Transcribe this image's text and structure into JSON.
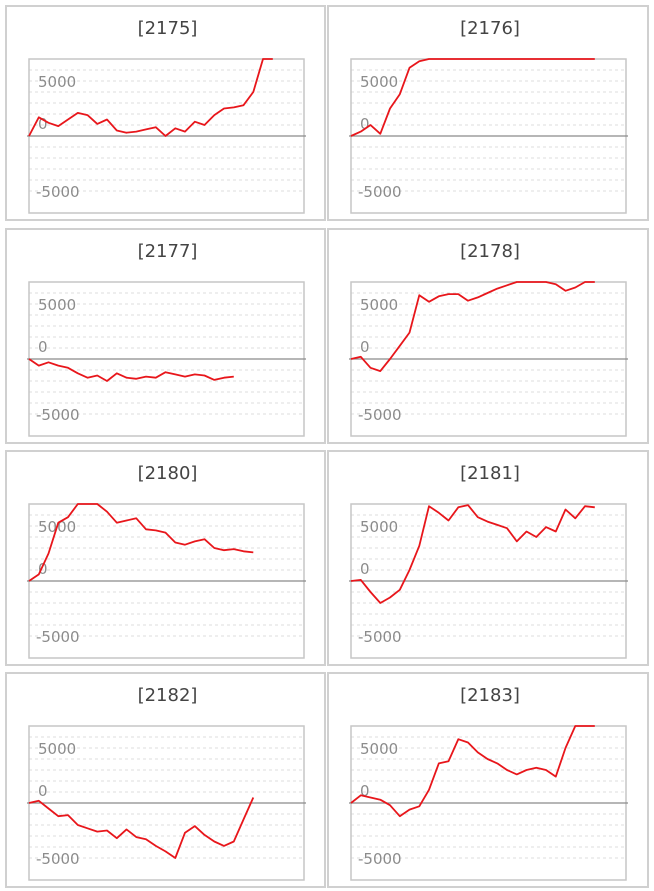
{
  "colors": {
    "series": "#e8161b",
    "frame": "#c6c6c6",
    "panel_border": "#d0d0d0",
    "zero_line": "#8a8a8a",
    "grid": "#dddddd"
  },
  "chart_data": [
    {
      "type": "line",
      "title": "[2175]",
      "ylim": [
        -7000,
        7000
      ],
      "yticks": [
        5000,
        0,
        -5000
      ],
      "grid": true,
      "series": [
        {
          "values": [
            0,
            1700,
            1200,
            900,
            1500,
            2100,
            1900,
            1100,
            1500,
            500,
            300,
            400,
            600,
            800,
            0,
            700,
            400,
            1300,
            1000,
            1900,
            2500,
            2600,
            2800,
            4000,
            7000,
            7000
          ]
        }
      ]
    },
    {
      "type": "line",
      "title": "[2176]",
      "ylim": [
        -7000,
        7000
      ],
      "yticks": [
        5000,
        0,
        -5000
      ],
      "grid": true,
      "series": [
        {
          "values": [
            0,
            400,
            1000,
            200,
            2500,
            3800,
            6200,
            6800,
            7000,
            7000,
            7000,
            7000,
            7000,
            7000,
            7000,
            7000,
            7000,
            7000,
            7000,
            7000,
            7000,
            7000,
            7000,
            7000,
            7000,
            7000
          ]
        }
      ]
    },
    {
      "type": "line",
      "title": "[2177]",
      "ylim": [
        -7000,
        7000
      ],
      "yticks": [
        5000,
        0,
        -5000
      ],
      "grid": true,
      "series": [
        {
          "values": [
            0,
            -600,
            -300,
            -600,
            -800,
            -1300,
            -1700,
            -1500,
            -2000,
            -1300,
            -1700,
            -1800,
            -1600,
            -1700,
            -1200,
            -1400,
            -1600,
            -1400,
            -1500,
            -1900,
            -1700,
            -1600
          ]
        }
      ]
    },
    {
      "type": "line",
      "title": "[2178]",
      "ylim": [
        -7000,
        7000
      ],
      "yticks": [
        5000,
        0,
        -5000
      ],
      "grid": true,
      "series": [
        {
          "values": [
            0,
            200,
            -800,
            -1100,
            0,
            1200,
            2400,
            5800,
            5200,
            5700,
            5900,
            5900,
            5300,
            5600,
            6000,
            6400,
            6700,
            7000,
            7000,
            7000,
            7000,
            6800,
            6200,
            6500,
            7000,
            7000
          ]
        }
      ]
    },
    {
      "type": "line",
      "title": "[2180]",
      "ylim": [
        -7000,
        7000
      ],
      "yticks": [
        5000,
        0,
        -5000
      ],
      "grid": true,
      "series": [
        {
          "values": [
            0,
            600,
            2500,
            5300,
            5800,
            7000,
            7000,
            7000,
            6300,
            5300,
            5500,
            5700,
            4700,
            4600,
            4400,
            3500,
            3300,
            3600,
            3800,
            3000,
            2800,
            2900,
            2700,
            2600
          ]
        }
      ]
    },
    {
      "type": "line",
      "title": "[2181]",
      "ylim": [
        -7000,
        7000
      ],
      "yticks": [
        5000,
        0,
        -5000
      ],
      "grid": true,
      "series": [
        {
          "values": [
            0,
            100,
            -1000,
            -2000,
            -1500,
            -800,
            1000,
            3200,
            6800,
            6200,
            5500,
            6700,
            6900,
            5800,
            5400,
            5100,
            4800,
            3600,
            4500,
            4000,
            4900,
            4500,
            6500,
            5700,
            6800,
            6700
          ]
        }
      ]
    },
    {
      "type": "line",
      "title": "[2182]",
      "ylim": [
        -7000,
        7000
      ],
      "yticks": [
        5000,
        0,
        -5000
      ],
      "grid": true,
      "series": [
        {
          "values": [
            0,
            200,
            -500,
            -1200,
            -1100,
            -2000,
            -2300,
            -2600,
            -2500,
            -3200,
            -2400,
            -3100,
            -3300,
            -3900,
            -4400,
            -5000,
            -2700,
            -2100,
            -2900,
            -3500,
            -3900,
            -3500,
            -1500,
            500
          ]
        }
      ]
    },
    {
      "type": "line",
      "title": "[2183]",
      "ylim": [
        -7000,
        7000
      ],
      "yticks": [
        5000,
        0,
        -5000
      ],
      "grid": true,
      "series": [
        {
          "values": [
            0,
            700,
            500,
            300,
            -200,
            -1200,
            -600,
            -300,
            1200,
            3600,
            3800,
            5800,
            5500,
            4600,
            4000,
            3600,
            3000,
            2600,
            3000,
            3200,
            3000,
            2400,
            5000,
            7000,
            7000,
            7000
          ]
        }
      ]
    }
  ]
}
